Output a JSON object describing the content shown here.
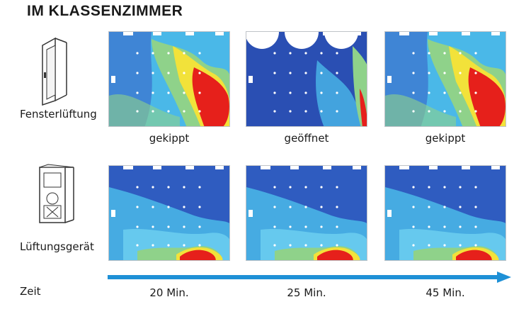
{
  "title": "IM KLASSENZIMMER",
  "rows": [
    {
      "label": "Fensterlüftung",
      "icon": "window-tilt-icon",
      "panels": [
        {
          "caption": "gekippt",
          "variant": "tilt"
        },
        {
          "caption": "geöffnet",
          "variant": "open"
        },
        {
          "caption": "gekippt",
          "variant": "tilt"
        }
      ]
    },
    {
      "label": "Lüftungsgerät",
      "icon": "ventilation-unit-icon",
      "panels": [
        {
          "caption": "",
          "variant": "unit"
        },
        {
          "caption": "",
          "variant": "unit"
        },
        {
          "caption": "",
          "variant": "unit"
        }
      ]
    }
  ],
  "timeline": {
    "label": "Zeit",
    "times": [
      "20 Min.",
      "25 Min.",
      "45 Min."
    ],
    "color": "#1e90d6"
  },
  "colors": {
    "low": "#2a52b8",
    "mid": "#4ab8e8",
    "green": "#8fd28a",
    "yellow": "#f2e23a",
    "high": "#e6201b"
  }
}
